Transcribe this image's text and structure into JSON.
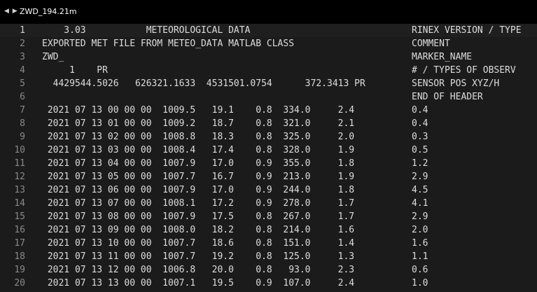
{
  "tab": {
    "nav_arrows": "◀ ▶",
    "title": "ZWD_194.21m"
  },
  "editor": {
    "lines": [
      {
        "num": "1",
        "code": "    3.03           METEOROLOGICAL DATA",
        "label": "RINEX VERSION / TYPE"
      },
      {
        "num": "2",
        "code": "EXPORTED MET FILE FROM METEO_DATA MATLAB CLASS",
        "label": "COMMENT"
      },
      {
        "num": "3",
        "code": "ZWD_",
        "label": "MARKER_NAME"
      },
      {
        "num": "4",
        "code": "     1    PR",
        "label": "# / TYPES OF OBSERV"
      },
      {
        "num": "5",
        "code": "  4429544.5026   626321.1633  4531501.0754      372.3413 PR",
        "label": "SENSOR POS XYZ/H"
      },
      {
        "num": "6",
        "code": "",
        "label": "END OF HEADER"
      },
      {
        "num": "7",
        "code": " 2021 07 13 00 00 00  1009.5   19.1    0.8  334.0     2.4",
        "label": "0.4"
      },
      {
        "num": "8",
        "code": " 2021 07 13 01 00 00  1009.2   18.7    0.8  321.0     2.1",
        "label": "0.4"
      },
      {
        "num": "9",
        "code": " 2021 07 13 02 00 00  1008.8   18.3    0.8  325.0     2.0",
        "label": "0.3"
      },
      {
        "num": "10",
        "code": " 2021 07 13 03 00 00  1008.4   17.4    0.8  328.0     1.9",
        "label": "0.5"
      },
      {
        "num": "11",
        "code": " 2021 07 13 04 00 00  1007.9   17.0    0.9  355.0     1.8",
        "label": "1.2"
      },
      {
        "num": "12",
        "code": " 2021 07 13 05 00 00  1007.7   16.7    0.9  213.0     1.9",
        "label": "2.9"
      },
      {
        "num": "13",
        "code": " 2021 07 13 06 00 00  1007.9   17.0    0.9  244.0     1.8",
        "label": "4.5"
      },
      {
        "num": "14",
        "code": " 2021 07 13 07 00 00  1008.1   17.2    0.9  278.0     1.7",
        "label": "4.1"
      },
      {
        "num": "15",
        "code": " 2021 07 13 08 00 00  1007.9   17.5    0.8  267.0     1.7",
        "label": "2.9"
      },
      {
        "num": "16",
        "code": " 2021 07 13 09 00 00  1008.0   18.2    0.8  214.0     1.6",
        "label": "2.0"
      },
      {
        "num": "17",
        "code": " 2021 07 13 10 00 00  1007.7   18.6    0.8  151.0     1.4",
        "label": "1.6"
      },
      {
        "num": "18",
        "code": " 2021 07 13 11 00 00  1007.7   19.2    0.8  125.0     1.3",
        "label": "1.1"
      },
      {
        "num": "19",
        "code": " 2021 07 13 12 00 00  1006.8   20.0    0.8   93.0     2.3",
        "label": "0.6"
      },
      {
        "num": "20",
        "code": " 2021 07 13 13 00 00  1007.1   19.5    0.9  107.0     2.4",
        "label": "1.0"
      }
    ]
  }
}
